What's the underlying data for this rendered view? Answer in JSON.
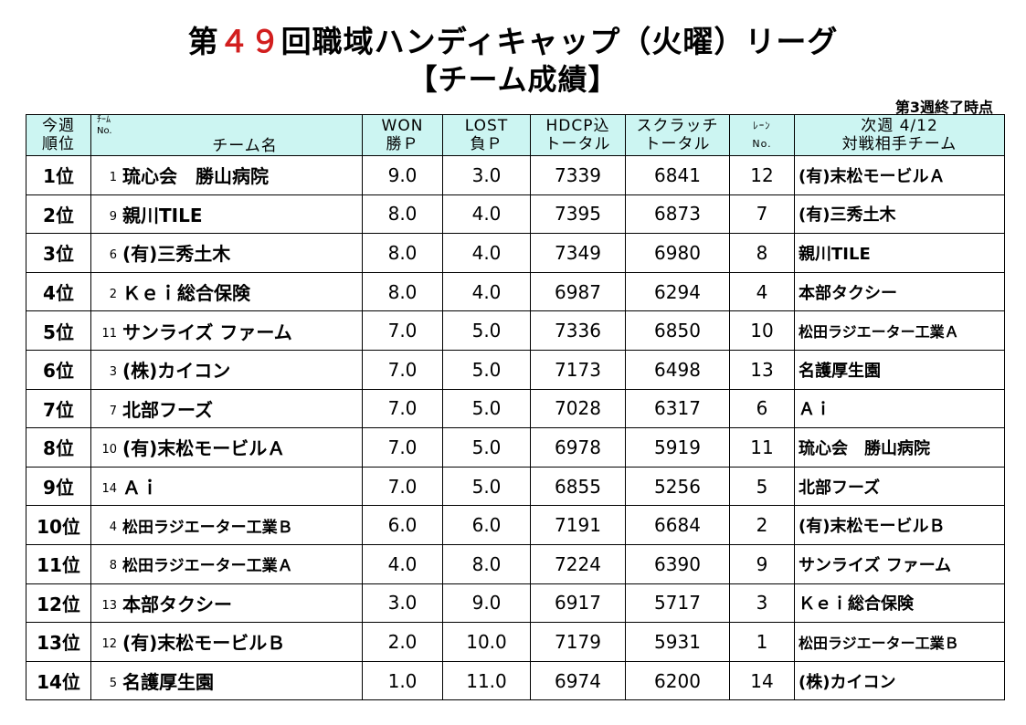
{
  "title": {
    "prefix": "第",
    "number": "４９",
    "suffix": "回職域ハンディキャップ（火曜）リーグ",
    "subtitle": "【チーム成績】"
  },
  "status": "第3週終了時点",
  "headers": {
    "rank": [
      "今週",
      "順位"
    ],
    "team_no": [
      "ﾁｰﾑ",
      "No."
    ],
    "team_name": "チーム名",
    "won": [
      "WON",
      "勝Ｐ"
    ],
    "lost": [
      "LOST",
      "負Ｐ"
    ],
    "hdcp": [
      "HDCP込",
      "トータル"
    ],
    "scratch": [
      "スクラッチ",
      "トータル"
    ],
    "lane": [
      "ﾚｰﾝ",
      "No."
    ],
    "next": [
      "次週 4/12",
      "対戦相手チーム"
    ]
  },
  "rows": [
    {
      "rank": "1位",
      "no": "1",
      "team": "琉心会　勝山病院",
      "won": "9.0",
      "lost": "3.0",
      "hdcp": "7339",
      "scratch": "6841",
      "lane": "12",
      "opponent": "(有)末松モービルＡ"
    },
    {
      "rank": "2位",
      "no": "9",
      "team": "親川TILE",
      "won": "8.0",
      "lost": "4.0",
      "hdcp": "7395",
      "scratch": "6873",
      "lane": "7",
      "opponent": "(有)三秀土木"
    },
    {
      "rank": "3位",
      "no": "6",
      "team": "(有)三秀土木",
      "won": "8.0",
      "lost": "4.0",
      "hdcp": "7349",
      "scratch": "6980",
      "lane": "8",
      "opponent": "親川TILE"
    },
    {
      "rank": "4位",
      "no": "2",
      "team": "Ｋｅｉ総合保険",
      "won": "8.0",
      "lost": "4.0",
      "hdcp": "6987",
      "scratch": "6294",
      "lane": "4",
      "opponent": "本部タクシー"
    },
    {
      "rank": "5位",
      "no": "11",
      "team": "サンライズ ファーム",
      "won": "7.0",
      "lost": "5.0",
      "hdcp": "7336",
      "scratch": "6850",
      "lane": "10",
      "opponent": "松田ラジエーター工業Ａ"
    },
    {
      "rank": "6位",
      "no": "3",
      "team": "(株)カイコン",
      "won": "7.0",
      "lost": "5.0",
      "hdcp": "7173",
      "scratch": "6498",
      "lane": "13",
      "opponent": "名護厚生園"
    },
    {
      "rank": "7位",
      "no": "7",
      "team": "北部フーズ",
      "won": "7.0",
      "lost": "5.0",
      "hdcp": "7028",
      "scratch": "6317",
      "lane": "6",
      "opponent": "Ａｉ"
    },
    {
      "rank": "8位",
      "no": "10",
      "team": "(有)末松モービルＡ",
      "won": "7.0",
      "lost": "5.0",
      "hdcp": "6978",
      "scratch": "5919",
      "lane": "11",
      "opponent": "琉心会　勝山病院"
    },
    {
      "rank": "9位",
      "no": "14",
      "team": "Ａｉ",
      "won": "7.0",
      "lost": "5.0",
      "hdcp": "6855",
      "scratch": "5256",
      "lane": "5",
      "opponent": "北部フーズ"
    },
    {
      "rank": "10位",
      "no": "4",
      "team": "松田ラジエーター工業Ｂ",
      "won": "6.0",
      "lost": "6.0",
      "hdcp": "7191",
      "scratch": "6684",
      "lane": "2",
      "opponent": "(有)末松モービルＢ"
    },
    {
      "rank": "11位",
      "no": "8",
      "team": "松田ラジエーター工業Ａ",
      "won": "4.0",
      "lost": "8.0",
      "hdcp": "7224",
      "scratch": "6390",
      "lane": "9",
      "opponent": "サンライズ ファーム"
    },
    {
      "rank": "12位",
      "no": "13",
      "team": "本部タクシー",
      "won": "3.0",
      "lost": "9.0",
      "hdcp": "6917",
      "scratch": "5717",
      "lane": "3",
      "opponent": "Ｋｅｉ総合保険"
    },
    {
      "rank": "13位",
      "no": "12",
      "team": "(有)末松モービルＢ",
      "won": "2.0",
      "lost": "10.0",
      "hdcp": "7179",
      "scratch": "5931",
      "lane": "1",
      "opponent": "松田ラジエーター工業Ｂ"
    },
    {
      "rank": "14位",
      "no": "5",
      "team": "名護厚生園",
      "won": "1.0",
      "lost": "11.0",
      "hdcp": "6974",
      "scratch": "6200",
      "lane": "14",
      "opponent": "(株)カイコン"
    }
  ],
  "colors": {
    "header_bg": "#ccf5f2",
    "title_number": "#d21e1e"
  }
}
